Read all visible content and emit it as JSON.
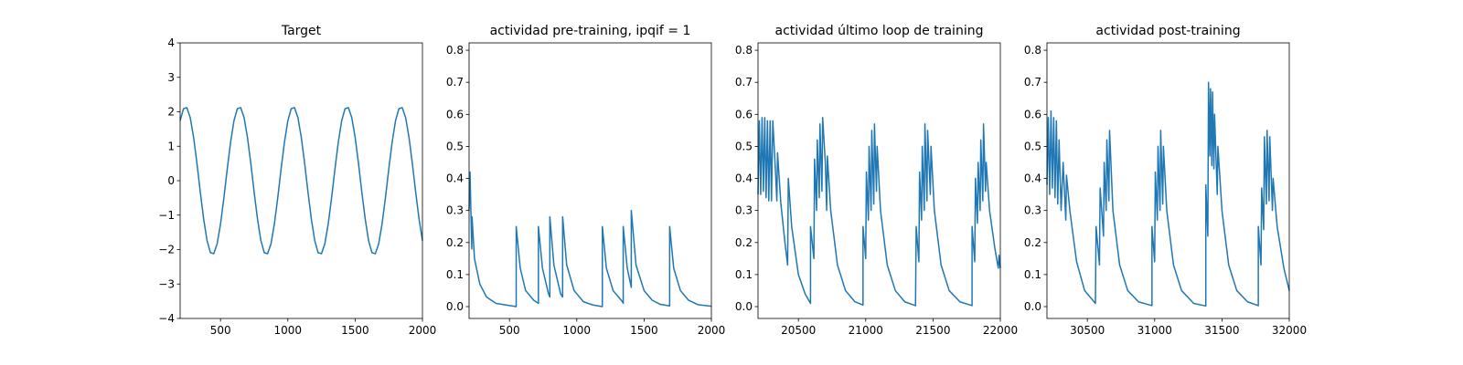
{
  "chart_data": [
    {
      "type": "line",
      "title": "Target",
      "color": "#1f77b4",
      "x": [
        200,
        225,
        250,
        275,
        300,
        325,
        350,
        375,
        400,
        425,
        450,
        475,
        500,
        525,
        550,
        575,
        600,
        625,
        650,
        675,
        700,
        725,
        750,
        775,
        800,
        825,
        850,
        875,
        900,
        925,
        950,
        975,
        1000,
        1025,
        1050,
        1075,
        1100,
        1125,
        1150,
        1175,
        1200,
        1225,
        1250,
        1275,
        1300,
        1325,
        1350,
        1375,
        1400,
        1425,
        1450,
        1475,
        1500,
        1525,
        1550,
        1575,
        1600,
        1625,
        1650,
        1675,
        1700,
        1725,
        1750,
        1775,
        1800,
        1825,
        1850,
        1875,
        1900,
        1925,
        1950,
        1975,
        2000
      ],
      "values": [
        1.74,
        2.09,
        2.12,
        1.83,
        1.26,
        0.5,
        -0.34,
        -1.12,
        -1.74,
        -2.09,
        -2.12,
        -1.83,
        -1.26,
        -0.5,
        0.34,
        1.12,
        1.74,
        2.09,
        2.12,
        1.83,
        1.26,
        0.5,
        -0.34,
        -1.12,
        -1.74,
        -2.09,
        -2.12,
        -1.83,
        -1.26,
        -0.5,
        0.34,
        1.12,
        1.74,
        2.09,
        2.12,
        1.83,
        1.26,
        0.5,
        -0.34,
        -1.12,
        -1.74,
        -2.09,
        -2.12,
        -1.83,
        -1.26,
        -0.5,
        0.34,
        1.12,
        1.74,
        2.09,
        2.12,
        1.83,
        1.26,
        0.5,
        -0.34,
        -1.12,
        -1.74,
        -2.09,
        -2.12,
        -1.83,
        -1.26,
        -0.5,
        0.34,
        1.12,
        1.74,
        2.09,
        2.12,
        1.83,
        1.26,
        0.5,
        -0.34,
        -1.12,
        -1.74
      ],
      "xlim": [
        200,
        2000
      ],
      "xticks": [
        500,
        1000,
        1500,
        2000
      ],
      "ylim": [
        -4,
        4
      ],
      "yticks": [
        {
          "value": -4,
          "label": "−4"
        },
        {
          "value": -3,
          "label": "−3"
        },
        {
          "value": -2,
          "label": "−2"
        },
        {
          "value": -1,
          "label": "−1"
        },
        0,
        1,
        2,
        3,
        4
      ]
    },
    {
      "type": "line",
      "title": "actividad pre-training, ipqif = 1",
      "color": "#1f77b4",
      "x": [
        200,
        207,
        220,
        222,
        240,
        280,
        330,
        400,
        550,
        550,
        580,
        620,
        680,
        715,
        715,
        745,
        790,
        800,
        800,
        830,
        880,
        895,
        895,
        925,
        980,
        1050,
        1120,
        1190,
        1190,
        1220,
        1270,
        1340,
        1345,
        1345,
        1375,
        1405,
        1405,
        1440,
        1500,
        1560,
        1620,
        1690,
        1690,
        1720,
        1770,
        1830,
        1900,
        2000
      ],
      "values": [
        0.3,
        0.42,
        0.18,
        0.28,
        0.15,
        0.07,
        0.03,
        0.01,
        0.0,
        0.25,
        0.12,
        0.05,
        0.02,
        0.01,
        0.25,
        0.12,
        0.04,
        0.03,
        0.28,
        0.13,
        0.04,
        0.03,
        0.28,
        0.13,
        0.05,
        0.015,
        0.005,
        0.0,
        0.25,
        0.12,
        0.05,
        0.015,
        0.01,
        0.25,
        0.12,
        0.06,
        0.3,
        0.13,
        0.05,
        0.02,
        0.007,
        0.002,
        0.25,
        0.12,
        0.05,
        0.02,
        0.006,
        0.001
      ],
      "xlim": [
        200,
        2000
      ],
      "xticks": [
        500,
        1000,
        1500,
        2000
      ],
      "ylim": [
        -0.037,
        0.823
      ],
      "yticks": [
        {
          "value": 0,
          "label": "0.0"
        },
        0.1,
        0.2,
        0.3,
        0.4,
        0.5,
        0.6,
        0.7,
        0.8
      ]
    },
    {
      "type": "line",
      "title": "actividad último loop de training",
      "color": "#1f77b4",
      "x": [
        20200,
        20210,
        20220,
        20230,
        20240,
        20250,
        20260,
        20270,
        20280,
        20290,
        20300,
        20310,
        20330,
        20340,
        20345,
        20370,
        20400,
        20420,
        20425,
        20450,
        20500,
        20550,
        20590,
        20590,
        20615,
        20620,
        20635,
        20640,
        20655,
        20660,
        20675,
        20680,
        20700,
        20710,
        20715,
        20740,
        20790,
        20850,
        20920,
        20980,
        20980,
        21000,
        21005,
        21020,
        21025,
        21040,
        21045,
        21060,
        21065,
        21080,
        21085,
        21110,
        21160,
        21220,
        21290,
        21370,
        21375,
        21395,
        21400,
        21415,
        21420,
        21435,
        21440,
        21455,
        21460,
        21480,
        21485,
        21510,
        21560,
        21620,
        21700,
        21790,
        21790,
        21810,
        21815,
        21830,
        21835,
        21850,
        21855,
        21870,
        21875,
        21890,
        21895,
        21920,
        21960,
        21985,
        21990,
        22000
      ],
      "values": [
        0.35,
        0.58,
        0.35,
        0.59,
        0.36,
        0.59,
        0.34,
        0.58,
        0.33,
        0.58,
        0.33,
        0.58,
        0.42,
        0.33,
        0.48,
        0.32,
        0.2,
        0.13,
        0.4,
        0.25,
        0.1,
        0.04,
        0.01,
        0.25,
        0.15,
        0.46,
        0.3,
        0.52,
        0.34,
        0.57,
        0.36,
        0.59,
        0.45,
        0.3,
        0.47,
        0.3,
        0.13,
        0.05,
        0.015,
        0.005,
        0.25,
        0.15,
        0.42,
        0.27,
        0.5,
        0.3,
        0.55,
        0.32,
        0.57,
        0.36,
        0.5,
        0.3,
        0.13,
        0.05,
        0.015,
        0.003,
        0.25,
        0.14,
        0.42,
        0.27,
        0.5,
        0.3,
        0.57,
        0.33,
        0.55,
        0.35,
        0.5,
        0.3,
        0.13,
        0.05,
        0.015,
        0.003,
        0.25,
        0.14,
        0.4,
        0.26,
        0.45,
        0.3,
        0.52,
        0.33,
        0.57,
        0.36,
        0.45,
        0.3,
        0.18,
        0.12,
        0.16,
        0.12
      ],
      "xlim": [
        20200,
        22000
      ],
      "xticks": [
        20500,
        21000,
        21500,
        22000
      ],
      "ylim": [
        -0.037,
        0.823
      ],
      "yticks": [
        {
          "value": 0,
          "label": "0.0"
        },
        0.1,
        0.2,
        0.3,
        0.4,
        0.5,
        0.6,
        0.7,
        0.8
      ]
    },
    {
      "type": "line",
      "title": "actividad post-training",
      "color": "#1f77b4",
      "x": [
        30200,
        30210,
        30220,
        30230,
        30240,
        30250,
        30260,
        30270,
        30280,
        30290,
        30305,
        30320,
        30340,
        30345,
        30370,
        30420,
        30480,
        30560,
        30565,
        30590,
        30595,
        30620,
        30625,
        30640,
        30645,
        30660,
        30665,
        30690,
        30740,
        30800,
        30880,
        30980,
        30980,
        31000,
        31005,
        31020,
        31025,
        31040,
        31045,
        31060,
        31065,
        31090,
        31140,
        31200,
        31290,
        31380,
        31380,
        31395,
        31400,
        31410,
        31415,
        31425,
        31430,
        31440,
        31445,
        31465,
        31470,
        31500,
        31550,
        31610,
        31690,
        31770,
        31770,
        31790,
        31795,
        31810,
        31815,
        31830,
        31835,
        31850,
        31855,
        31875,
        31880,
        31910,
        31960,
        32000
      ],
      "values": [
        0.38,
        0.59,
        0.35,
        0.61,
        0.37,
        0.59,
        0.34,
        0.58,
        0.32,
        0.52,
        0.3,
        0.45,
        0.27,
        0.41,
        0.3,
        0.14,
        0.05,
        0.01,
        0.25,
        0.13,
        0.37,
        0.22,
        0.45,
        0.3,
        0.52,
        0.33,
        0.55,
        0.3,
        0.13,
        0.05,
        0.015,
        0.003,
        0.25,
        0.14,
        0.42,
        0.27,
        0.5,
        0.3,
        0.55,
        0.32,
        0.5,
        0.3,
        0.13,
        0.05,
        0.01,
        0.002,
        0.38,
        0.22,
        0.7,
        0.47,
        0.68,
        0.44,
        0.67,
        0.43,
        0.6,
        0.35,
        0.5,
        0.3,
        0.13,
        0.05,
        0.015,
        0.003,
        0.25,
        0.13,
        0.37,
        0.24,
        0.53,
        0.32,
        0.55,
        0.33,
        0.53,
        0.3,
        0.4,
        0.25,
        0.12,
        0.05
      ],
      "xlim": [
        30200,
        32000
      ],
      "xticks": [
        30500,
        31000,
        31500,
        32000
      ],
      "ylim": [
        -0.037,
        0.823
      ],
      "yticks": [
        {
          "value": 0,
          "label": "0.0"
        },
        0.1,
        0.2,
        0.3,
        0.4,
        0.5,
        0.6,
        0.7,
        0.8
      ]
    }
  ]
}
